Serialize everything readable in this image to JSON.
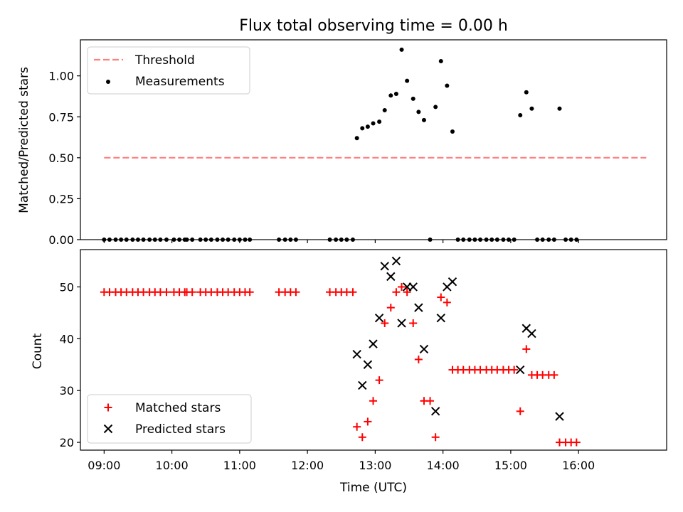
{
  "chart_data": [
    {
      "type": "scatter",
      "title": "Flux total observing time = 0.00 h",
      "xlabel": "",
      "ylabel": "Matched/Predicted stars",
      "xlim_hours": [
        8.65,
        17.3
      ],
      "ylim": [
        0,
        1.22
      ],
      "yticks": [
        "0.00",
        "0.25",
        "0.50",
        "0.75",
        "1.00"
      ],
      "grid": false,
      "legend_position": "upper left",
      "legend": [
        "Threshold",
        "Measurements"
      ],
      "threshold": {
        "name": "Threshold",
        "value": 0.5,
        "x_start": 9.0,
        "x_end": 17.0,
        "color": "#ff7f7f"
      },
      "series": [
        {
          "name": "Measurements",
          "color": "#000000",
          "points": [
            [
              9.0,
              0
            ],
            [
              9.08,
              0
            ],
            [
              9.17,
              0
            ],
            [
              9.25,
              0
            ],
            [
              9.33,
              0
            ],
            [
              9.42,
              0
            ],
            [
              9.5,
              0
            ],
            [
              9.58,
              0
            ],
            [
              9.67,
              0
            ],
            [
              9.75,
              0
            ],
            [
              9.83,
              0
            ],
            [
              9.92,
              0
            ],
            [
              10.03,
              0
            ],
            [
              10.11,
              0
            ],
            [
              10.19,
              0
            ],
            [
              10.22,
              0
            ],
            [
              10.3,
              0
            ],
            [
              10.42,
              0
            ],
            [
              10.5,
              0
            ],
            [
              10.58,
              0
            ],
            [
              10.67,
              0
            ],
            [
              10.75,
              0
            ],
            [
              10.83,
              0
            ],
            [
              10.92,
              0
            ],
            [
              11.0,
              0
            ],
            [
              11.08,
              0
            ],
            [
              11.15,
              0
            ],
            [
              11.58,
              0
            ],
            [
              11.67,
              0
            ],
            [
              11.75,
              0
            ],
            [
              11.83,
              0
            ],
            [
              12.33,
              0
            ],
            [
              12.42,
              0
            ],
            [
              12.5,
              0
            ],
            [
              12.58,
              0
            ],
            [
              12.67,
              0
            ],
            [
              12.73,
              0.62
            ],
            [
              12.81,
              0.68
            ],
            [
              12.89,
              0.69
            ],
            [
              12.97,
              0.71
            ],
            [
              13.06,
              0.72
            ],
            [
              13.14,
              0.79
            ],
            [
              13.23,
              0.88
            ],
            [
              13.31,
              0.89
            ],
            [
              13.39,
              1.16
            ],
            [
              13.47,
              0.97
            ],
            [
              13.56,
              0.86
            ],
            [
              13.64,
              0.78
            ],
            [
              13.72,
              0.73
            ],
            [
              13.81,
              0
            ],
            [
              13.89,
              0.81
            ],
            [
              13.97,
              1.09
            ],
            [
              14.06,
              0.94
            ],
            [
              14.14,
              0.66
            ],
            [
              14.22,
              0
            ],
            [
              14.3,
              0
            ],
            [
              14.39,
              0
            ],
            [
              14.47,
              0
            ],
            [
              14.55,
              0
            ],
            [
              14.64,
              0
            ],
            [
              14.72,
              0
            ],
            [
              14.8,
              0
            ],
            [
              14.89,
              0
            ],
            [
              14.97,
              0
            ],
            [
              15.05,
              0
            ],
            [
              15.14,
              0.76
            ],
            [
              15.23,
              0.9
            ],
            [
              15.31,
              0.8
            ],
            [
              15.39,
              0
            ],
            [
              15.47,
              0
            ],
            [
              15.56,
              0
            ],
            [
              15.64,
              0
            ],
            [
              15.72,
              0.8
            ],
            [
              15.81,
              0
            ],
            [
              15.89,
              0
            ],
            [
              15.97,
              0
            ]
          ]
        }
      ]
    },
    {
      "type": "scatter",
      "title": "",
      "xlabel": "Time (UTC)",
      "ylabel": "Count",
      "xlim_hours": [
        8.65,
        17.3
      ],
      "ylim": [
        18.5,
        57.2
      ],
      "yticks": [
        "20",
        "30",
        "40",
        "50"
      ],
      "xticks": [
        "09:00",
        "10:00",
        "11:00",
        "12:00",
        "13:00",
        "14:00",
        "15:00",
        "16:00"
      ],
      "grid": false,
      "legend_position": "lower left",
      "legend": [
        "Matched stars",
        "Predicted stars"
      ],
      "series": [
        {
          "name": "Matched stars",
          "marker": "plus",
          "color": "#ff0000",
          "points": [
            [
              9.0,
              49
            ],
            [
              9.08,
              49
            ],
            [
              9.17,
              49
            ],
            [
              9.25,
              49
            ],
            [
              9.33,
              49
            ],
            [
              9.42,
              49
            ],
            [
              9.5,
              49
            ],
            [
              9.58,
              49
            ],
            [
              9.67,
              49
            ],
            [
              9.75,
              49
            ],
            [
              9.83,
              49
            ],
            [
              9.92,
              49
            ],
            [
              10.03,
              49
            ],
            [
              10.11,
              49
            ],
            [
              10.19,
              49
            ],
            [
              10.22,
              49
            ],
            [
              10.3,
              49
            ],
            [
              10.42,
              49
            ],
            [
              10.5,
              49
            ],
            [
              10.58,
              49
            ],
            [
              10.67,
              49
            ],
            [
              10.75,
              49
            ],
            [
              10.83,
              49
            ],
            [
              10.92,
              49
            ],
            [
              11.0,
              49
            ],
            [
              11.08,
              49
            ],
            [
              11.15,
              49
            ],
            [
              11.58,
              49
            ],
            [
              11.67,
              49
            ],
            [
              11.75,
              49
            ],
            [
              11.83,
              49
            ],
            [
              12.33,
              49
            ],
            [
              12.42,
              49
            ],
            [
              12.5,
              49
            ],
            [
              12.58,
              49
            ],
            [
              12.67,
              49
            ],
            [
              12.73,
              23
            ],
            [
              12.81,
              21
            ],
            [
              12.89,
              24
            ],
            [
              12.97,
              28
            ],
            [
              13.06,
              32
            ],
            [
              13.14,
              43
            ],
            [
              13.23,
              46
            ],
            [
              13.31,
              49
            ],
            [
              13.39,
              50
            ],
            [
              13.47,
              49
            ],
            [
              13.56,
              43
            ],
            [
              13.64,
              36
            ],
            [
              13.72,
              28
            ],
            [
              13.81,
              28
            ],
            [
              13.89,
              21
            ],
            [
              13.97,
              48
            ],
            [
              14.06,
              47
            ],
            [
              14.14,
              34
            ],
            [
              14.22,
              34
            ],
            [
              14.3,
              34
            ],
            [
              14.39,
              34
            ],
            [
              14.47,
              34
            ],
            [
              14.55,
              34
            ],
            [
              14.64,
              34
            ],
            [
              14.72,
              34
            ],
            [
              14.8,
              34
            ],
            [
              14.89,
              34
            ],
            [
              14.97,
              34
            ],
            [
              15.05,
              34
            ],
            [
              15.14,
              26
            ],
            [
              15.23,
              38
            ],
            [
              15.31,
              33
            ],
            [
              15.39,
              33
            ],
            [
              15.47,
              33
            ],
            [
              15.56,
              33
            ],
            [
              15.64,
              33
            ],
            [
              15.72,
              20
            ],
            [
              15.81,
              20
            ],
            [
              15.89,
              20
            ],
            [
              15.97,
              20
            ]
          ]
        },
        {
          "name": "Predicted stars",
          "marker": "x",
          "color": "#000000",
          "points": [
            [
              12.73,
              37
            ],
            [
              12.81,
              31
            ],
            [
              12.89,
              35
            ],
            [
              12.97,
              39
            ],
            [
              13.06,
              44
            ],
            [
              13.14,
              54
            ],
            [
              13.23,
              52
            ],
            [
              13.31,
              55
            ],
            [
              13.39,
              43
            ],
            [
              13.47,
              50
            ],
            [
              13.56,
              50
            ],
            [
              13.64,
              46
            ],
            [
              13.72,
              38
            ],
            [
              13.89,
              26
            ],
            [
              13.97,
              44
            ],
            [
              14.06,
              50
            ],
            [
              14.14,
              51
            ],
            [
              15.14,
              34
            ],
            [
              15.23,
              42
            ],
            [
              15.31,
              41
            ],
            [
              15.72,
              25
            ]
          ]
        }
      ]
    }
  ]
}
